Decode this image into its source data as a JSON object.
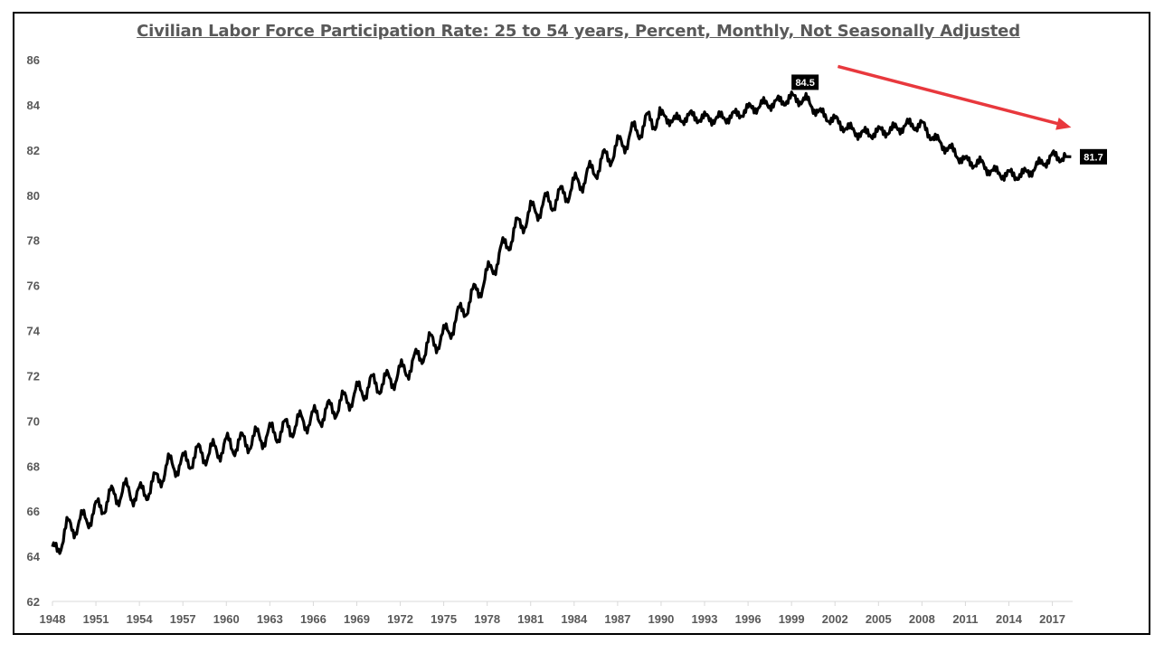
{
  "chart_data": {
    "type": "line",
    "title": "Civilian Labor Force Participation Rate: 25 to 54 years, Percent, Monthly, Not Seasonally Adjusted",
    "xlabel": "",
    "ylabel": "",
    "xlim": [
      1948,
      2018.4
    ],
    "ylim": [
      62,
      86
    ],
    "x_ticks": [
      "1948",
      "1951",
      "1954",
      "1957",
      "1960",
      "1963",
      "1966",
      "1969",
      "1972",
      "1975",
      "1978",
      "1981",
      "1984",
      "1987",
      "1990",
      "1993",
      "1996",
      "1999",
      "2002",
      "2005",
      "2008",
      "2011",
      "2014",
      "2017"
    ],
    "y_ticks": [
      "62",
      "64",
      "66",
      "68",
      "70",
      "72",
      "74",
      "76",
      "78",
      "80",
      "82",
      "84",
      "86"
    ],
    "grid": false,
    "legend": "none",
    "series": [
      {
        "color": "#000000",
        "x": [
          1948.0,
          1949.0,
          1950.0,
          1951.0,
          1952.0,
          1953.0,
          1954.0,
          1955.0,
          1956.0,
          1957.0,
          1958.0,
          1959.0,
          1960.0,
          1961.0,
          1962.0,
          1963.0,
          1964.0,
          1965.0,
          1966.0,
          1967.0,
          1968.0,
          1969.0,
          1970.0,
          1971.0,
          1972.0,
          1973.0,
          1974.0,
          1975.0,
          1976.0,
          1977.0,
          1978.0,
          1979.0,
          1980.0,
          1981.0,
          1982.0,
          1983.0,
          1984.0,
          1985.0,
          1986.0,
          1987.0,
          1988.0,
          1989.0,
          1990.0,
          1991.0,
          1992.0,
          1993.0,
          1994.0,
          1995.0,
          1996.0,
          1997.0,
          1998.0,
          1999.0,
          2000.0,
          2001.0,
          2002.0,
          2003.0,
          2004.0,
          2005.0,
          2006.0,
          2007.0,
          2008.0,
          2009.0,
          2010.0,
          2011.0,
          2012.0,
          2013.0,
          2014.0,
          2015.0,
          2016.0,
          2017.0,
          2018.0
        ],
        "y": [
          64.0,
          65.2,
          65.5,
          66.0,
          66.6,
          66.9,
          66.7,
          67.2,
          68.0,
          68.1,
          68.5,
          68.6,
          68.9,
          69.0,
          69.2,
          69.4,
          69.6,
          69.9,
          70.1,
          70.4,
          70.8,
          71.2,
          71.6,
          71.7,
          72.1,
          72.6,
          73.4,
          73.7,
          74.6,
          75.5,
          76.4,
          77.5,
          78.5,
          79.2,
          79.6,
          79.9,
          80.4,
          80.9,
          81.5,
          82.1,
          82.7,
          83.2,
          83.5,
          83.3,
          83.5,
          83.4,
          83.4,
          83.5,
          83.8,
          84.0,
          84.1,
          84.3,
          84.2,
          83.6,
          83.3,
          82.9,
          82.7,
          82.8,
          82.9,
          83.1,
          83.1,
          82.4,
          82.0,
          81.5,
          81.4,
          81.0,
          80.9,
          80.9,
          81.3,
          81.7,
          81.7
        ]
      }
    ],
    "annotations": [
      {
        "text": "84.5",
        "x": 1999.0,
        "y": 84.5
      },
      {
        "text": "81.7",
        "x": 2018.4,
        "y": 81.7
      }
    ],
    "trend_arrow": {
      "color": "#e8383d",
      "from": [
        2002.2,
        85.7
      ],
      "to": [
        2018.3,
        83.0
      ]
    }
  }
}
